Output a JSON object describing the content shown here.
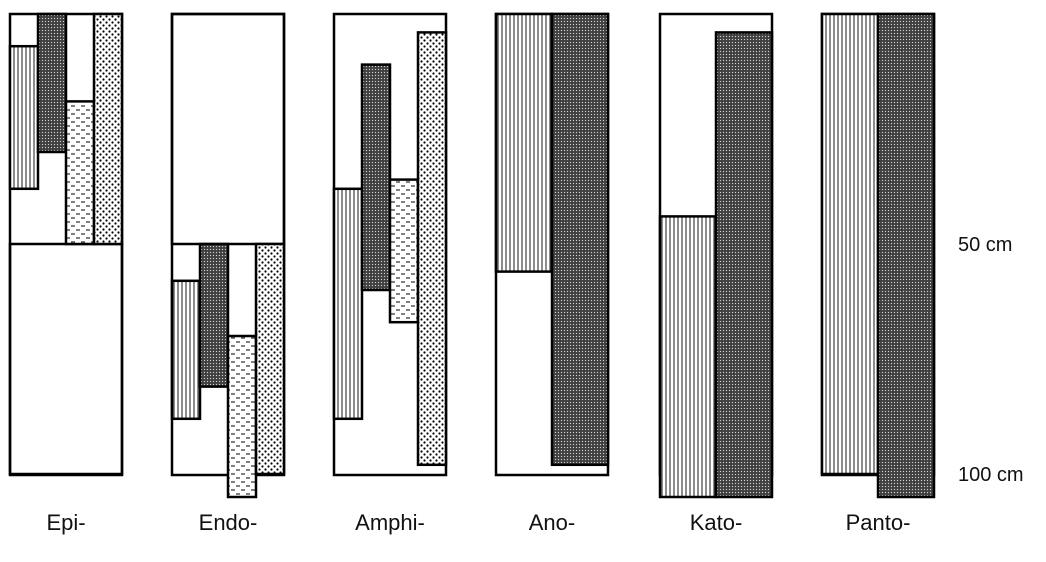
{
  "depth_markers": [
    {
      "value": 50,
      "text": "50 cm"
    },
    {
      "value": 100,
      "text": "100 cm"
    }
  ],
  "columns": [
    {
      "label": "Epi-",
      "layers": [
        {
          "pattern": "vertical-lines",
          "from": 7,
          "to": 38
        },
        {
          "pattern": "dense-dots",
          "from": 0,
          "to": 30
        },
        {
          "pattern": "dashes",
          "from": 19,
          "to": 50
        },
        {
          "pattern": "stipple",
          "from": 0,
          "to": 50
        }
      ],
      "extra_bands": [
        {
          "from": 50,
          "to": 100
        }
      ]
    },
    {
      "label": "Endo-",
      "layers": [
        {
          "pattern": "vertical-lines",
          "from": 58,
          "to": 88
        },
        {
          "pattern": "dense-dots",
          "from": 50,
          "to": 81
        },
        {
          "pattern": "dashes",
          "from": 70,
          "to": 105
        },
        {
          "pattern": "stipple",
          "from": 50,
          "to": 100
        }
      ],
      "extra_bands": [
        {
          "from": 0,
          "to": 50
        }
      ]
    },
    {
      "label": "Amphi-",
      "layers": [
        {
          "pattern": "vertical-lines",
          "from": 38,
          "to": 88
        },
        {
          "pattern": "dense-dots",
          "from": 11,
          "to": 60
        },
        {
          "pattern": "dashes",
          "from": 36,
          "to": 67
        },
        {
          "pattern": "stipple",
          "from": 4,
          "to": 98
        }
      ],
      "extra_bands": []
    },
    {
      "label": "Ano-",
      "layers": [
        {
          "pattern": "vertical-lines",
          "from": 0,
          "to": 56
        },
        {
          "pattern": "dense-dots",
          "from": 0,
          "to": 98
        }
      ],
      "extra_bands": []
    },
    {
      "label": "Kato-",
      "layers": [
        {
          "pattern": "vertical-lines",
          "from": 44,
          "to": 105
        },
        {
          "pattern": "dense-dots",
          "from": 4,
          "to": 105
        }
      ],
      "extra_bands": []
    },
    {
      "label": "Panto-",
      "layers": [
        {
          "pattern": "vertical-lines",
          "from": 0,
          "to": 100
        },
        {
          "pattern": "dense-dots",
          "from": 0,
          "to": 105
        }
      ],
      "extra_bands": []
    }
  ]
}
